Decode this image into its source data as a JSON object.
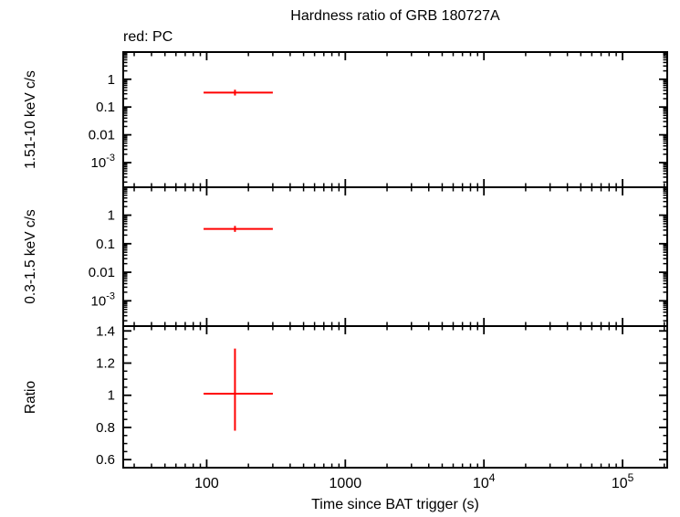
{
  "title": "Hardness ratio of GRB 180727A",
  "legend": "red: PC",
  "xlabel": "Time since BAT trigger (s)",
  "colors": {
    "background": "#ffffff",
    "axis": "#000000",
    "data": "#ff0000"
  },
  "chart_data": {
    "type": "scatter",
    "title": "Hardness ratio of GRB 180727A",
    "legend_note": "red: PC",
    "series": [
      {
        "name": "PC mode",
        "color": "#ff0000",
        "marker": "cross-error-bars"
      }
    ],
    "xlabel": "Time since BAT trigger (s)",
    "xscale": "log",
    "xlim": [
      25,
      210000
    ],
    "grid": false,
    "xticks": [
      {
        "v": 100,
        "label": "100"
      },
      {
        "v": 1000,
        "label": "1000"
      },
      {
        "v": 10000,
        "label": "10^4"
      },
      {
        "v": 100000,
        "label": "10^5"
      }
    ],
    "panels": [
      {
        "ylabel": "1.51-10 keV c/s",
        "yscale": "log",
        "ylim": [
          0.00013,
          9.5
        ],
        "yticks": [
          {
            "v": 1,
            "label": "1"
          },
          {
            "v": 0.1,
            "label": "0.1"
          },
          {
            "v": 0.01,
            "label": "0.01"
          },
          {
            "v": 0.001,
            "label": "10^-3"
          }
        ],
        "points": [
          {
            "x": 160,
            "x_lo": 95,
            "x_hi": 300,
            "y": 0.33,
            "y_lo": 0.26,
            "y_hi": 0.42
          }
        ]
      },
      {
        "ylabel": "0.3-1.5 keV c/s",
        "yscale": "log",
        "ylim": [
          0.00013,
          9.5
        ],
        "yticks": [
          {
            "v": 1,
            "label": "1"
          },
          {
            "v": 0.1,
            "label": "0.1"
          },
          {
            "v": 0.01,
            "label": "0.01"
          },
          {
            "v": 0.001,
            "label": "10^-3"
          }
        ],
        "points": [
          {
            "x": 160,
            "x_lo": 95,
            "x_hi": 300,
            "y": 0.33,
            "y_lo": 0.26,
            "y_hi": 0.42
          }
        ]
      },
      {
        "ylabel": "Ratio",
        "yscale": "linear",
        "ylim": [
          0.55,
          1.43
        ],
        "minor_step": 0.05,
        "yticks": [
          {
            "v": 0.6,
            "label": "0.6"
          },
          {
            "v": 0.8,
            "label": "0.8"
          },
          {
            "v": 1,
            "label": "1"
          },
          {
            "v": 1.2,
            "label": "1.2"
          },
          {
            "v": 1.4,
            "label": "1.4"
          }
        ],
        "points": [
          {
            "x": 160,
            "x_lo": 95,
            "x_hi": 300,
            "y": 1.01,
            "y_lo": 0.78,
            "y_hi": 1.29
          }
        ]
      }
    ]
  }
}
